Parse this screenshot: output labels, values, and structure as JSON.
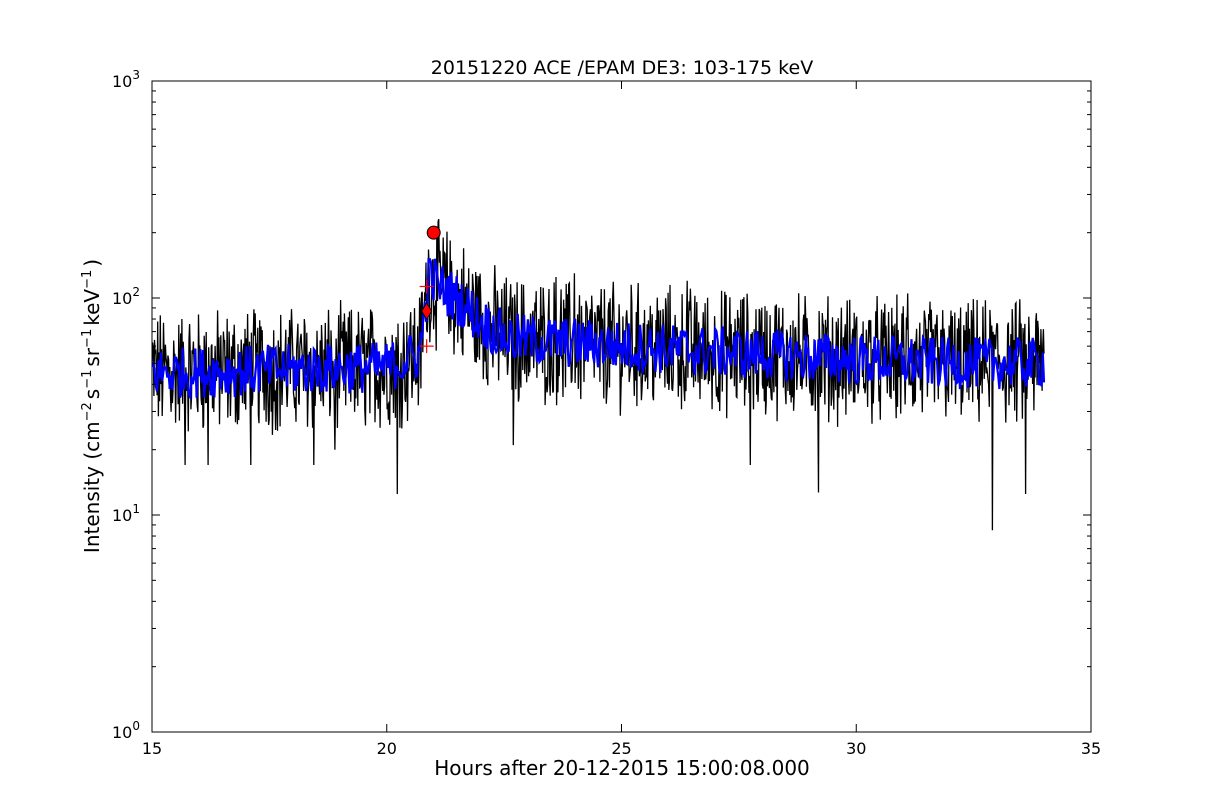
{
  "chart_data": {
    "type": "line",
    "title": "20151220 ACE /EPAM DE3: 103-175 keV",
    "xlabel": "Hours after 20-12-2015 15:00:08.000",
    "ylabel_parts": {
      "prefix": "Intensity (cm",
      "exp1": "−2",
      "s": "s",
      "exp2": "−1",
      "sr": "sr",
      "exp3": "−1",
      "kev": "keV",
      "exp4": "−1",
      "suffix": ")"
    },
    "xlim": [
      15,
      35
    ],
    "ylim": [
      1,
      1000
    ],
    "yscale": "log",
    "grid": false,
    "x_ticks": [
      {
        "value": 15,
        "label": "15"
      },
      {
        "value": 20,
        "label": "20"
      },
      {
        "value": 25,
        "label": "25"
      },
      {
        "value": 30,
        "label": "30"
      },
      {
        "value": 35,
        "label": "35"
      }
    ],
    "y_ticks": [
      {
        "value": 1,
        "base": "10",
        "exp": "0"
      },
      {
        "value": 10,
        "base": "10",
        "exp": "1"
      },
      {
        "value": 100,
        "base": "10",
        "exp": "2"
      },
      {
        "value": 1000,
        "base": "10",
        "exp": "3"
      }
    ],
    "series": [
      {
        "color": "#000000",
        "style": "raw",
        "x_range": [
          15.0,
          34.0
        ],
        "profile": [
          [
            15.0,
            45
          ],
          [
            20.0,
            48
          ],
          [
            20.7,
            55
          ],
          [
            20.9,
            125
          ],
          [
            21.2,
            110
          ],
          [
            21.6,
            95
          ],
          [
            22.1,
            75
          ],
          [
            22.6,
            65
          ],
          [
            24.0,
            62
          ],
          [
            26.0,
            58
          ],
          [
            28.0,
            55
          ],
          [
            30.0,
            52
          ],
          [
            32.0,
            50
          ],
          [
            34.0,
            50
          ]
        ],
        "dips": [
          [
            15.7,
            17
          ],
          [
            16.2,
            17
          ],
          [
            17.1,
            17
          ],
          [
            18.45,
            17
          ],
          [
            18.9,
            20
          ],
          [
            20.22,
            12.5
          ],
          [
            22.7,
            21
          ],
          [
            27.75,
            17
          ],
          [
            29.2,
            12.7
          ],
          [
            32.9,
            8.5
          ],
          [
            33.6,
            12.5
          ]
        ],
        "spikes": [
          [
            21.2,
            190
          ],
          [
            23.6,
            125
          ],
          [
            24.0,
            130
          ],
          [
            25.2,
            115
          ],
          [
            26.4,
            120
          ],
          [
            31.1,
            105
          ]
        ]
      },
      {
        "color": "#0000ff",
        "style": "smoothed",
        "x_range": [
          15.0,
          34.0
        ],
        "profile": [
          [
            15.0,
            45
          ],
          [
            20.0,
            48
          ],
          [
            20.7,
            55
          ],
          [
            20.9,
            125
          ],
          [
            21.2,
            110
          ],
          [
            21.6,
            95
          ],
          [
            22.1,
            75
          ],
          [
            22.6,
            65
          ],
          [
            24.0,
            62
          ],
          [
            26.0,
            58
          ],
          [
            28.0,
            55
          ],
          [
            30.0,
            52
          ],
          [
            32.0,
            50
          ],
          [
            34.0,
            50
          ]
        ]
      }
    ],
    "markers": [
      {
        "kind": "circle",
        "x": 21.0,
        "y": 200,
        "color": "#ff0000"
      },
      {
        "kind": "diamond",
        "x": 20.85,
        "y": 87,
        "color": "#ff0000"
      },
      {
        "kind": "plus",
        "x": 20.85,
        "y": 113,
        "color": "#ff0000"
      },
      {
        "kind": "plus",
        "x": 20.85,
        "y": 60,
        "color": "#ff0000"
      }
    ]
  }
}
